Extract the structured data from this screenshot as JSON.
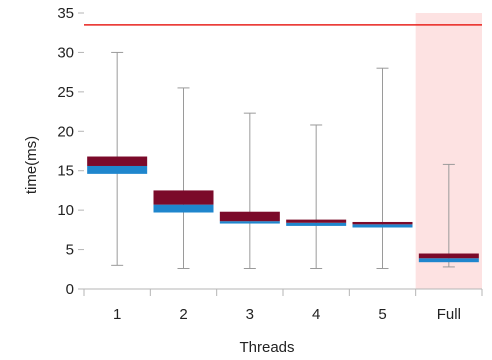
{
  "chart_data": {
    "type": "box",
    "xlabel": "Threads",
    "ylabel": "time(ms)",
    "ylim": [
      0,
      35
    ],
    "yticks": [
      0,
      5,
      10,
      15,
      20,
      25,
      30,
      35
    ],
    "grid": false,
    "categories": [
      "1",
      "2",
      "3",
      "4",
      "5",
      "Full"
    ],
    "boxes": [
      {
        "category": "1",
        "min": 3.0,
        "q1": 14.6,
        "median": 15.6,
        "q3": 16.8,
        "max": 30.0
      },
      {
        "category": "2",
        "min": 2.6,
        "q1": 9.7,
        "median": 10.7,
        "q3": 12.5,
        "max": 25.5
      },
      {
        "category": "3",
        "min": 2.6,
        "q1": 8.3,
        "median": 8.6,
        "q3": 9.8,
        "max": 22.3
      },
      {
        "category": "4",
        "min": 2.6,
        "q1": 8.0,
        "median": 8.4,
        "q3": 8.8,
        "max": 20.8
      },
      {
        "category": "5",
        "min": 2.6,
        "q1": 7.8,
        "median": 8.2,
        "q3": 8.5,
        "max": 28.0
      },
      {
        "category": "Full",
        "min": 2.8,
        "q1": 3.4,
        "median": 3.9,
        "q3": 4.5,
        "max": 15.8
      }
    ],
    "reference_line": {
      "y": 33.5,
      "color": "#e8231e"
    },
    "highlight_category": "Full",
    "colors": {
      "upper_box": "#7b0a2a",
      "lower_box": "#1f86cd",
      "whisker": "#9a9a9a",
      "highlight": "#fde2e2",
      "axis": "#b5b5b5"
    }
  }
}
